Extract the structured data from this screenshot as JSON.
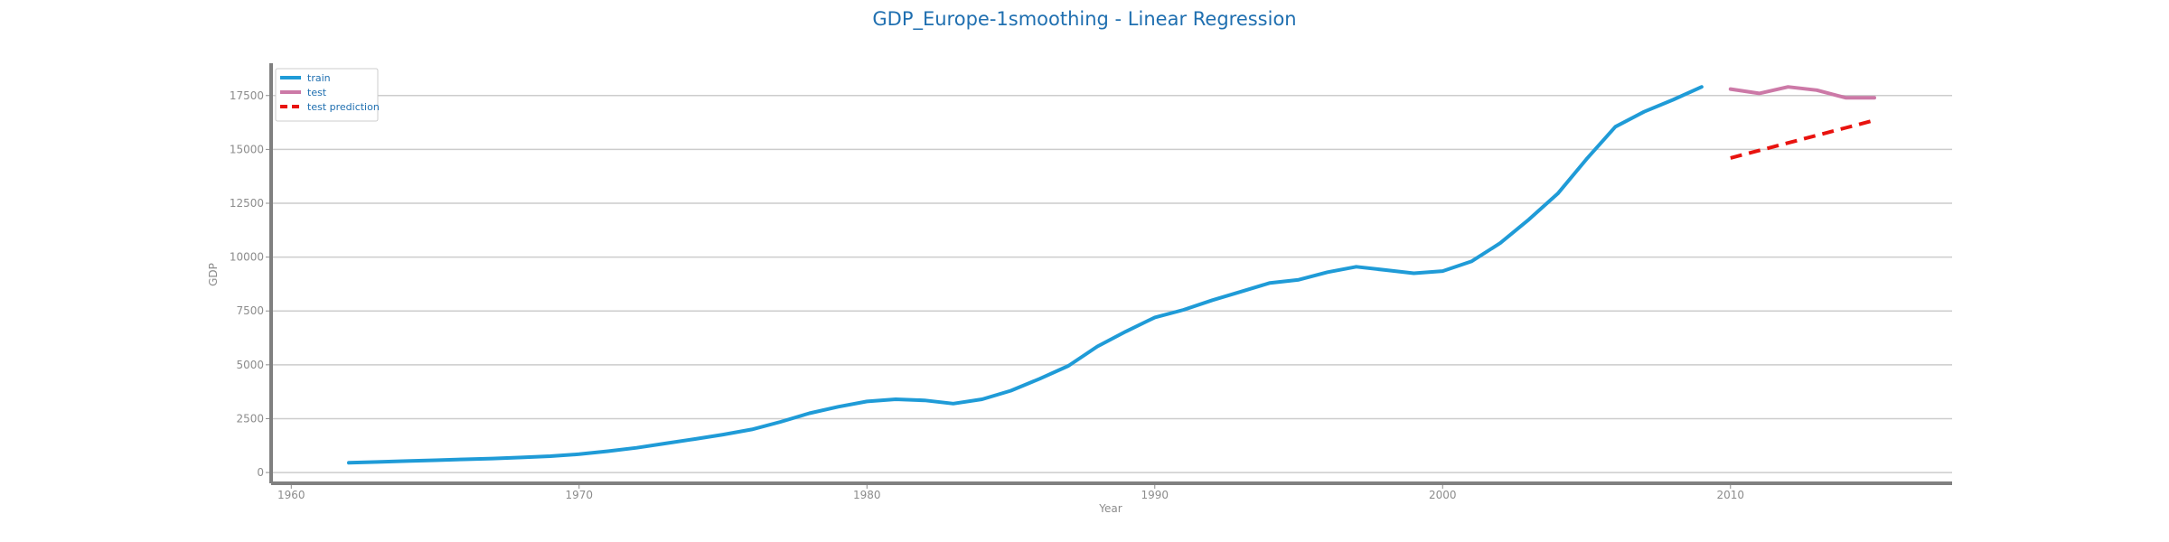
{
  "chart_data": {
    "type": "line",
    "title": "GDP_Europe-1smoothing - Linear Regression",
    "xlabel": "Year",
    "ylabel": "GDP",
    "xlim": [
      1959.3,
      2017.7
    ],
    "ylim": [
      -500,
      19000
    ],
    "x_ticks": [
      "1960",
      "1970",
      "1980",
      "1990",
      "2000",
      "2010"
    ],
    "y_ticks": [
      "0",
      "2500",
      "5000",
      "7500",
      "10000",
      "12500",
      "15000",
      "17500"
    ],
    "grid": "horizontal",
    "legend_position": "top-left",
    "series": [
      {
        "name": "train",
        "color": "#1f9bd7",
        "style": "solid",
        "x": [
          1962,
          1963,
          1964,
          1965,
          1966,
          1967,
          1968,
          1969,
          1970,
          1971,
          1972,
          1973,
          1974,
          1975,
          1976,
          1977,
          1978,
          1979,
          1980,
          1981,
          1982,
          1983,
          1984,
          1985,
          1986,
          1987,
          1988,
          1989,
          1990,
          1991,
          1992,
          1993,
          1994,
          1995,
          1996,
          1997,
          1998,
          1999,
          2000,
          2001,
          2002,
          2003,
          2004,
          2005,
          2006,
          2007,
          2008,
          2009
        ],
        "y": [
          450,
          490,
          530,
          570,
          610,
          650,
          700,
          760,
          850,
          990,
          1150,
          1350,
          1550,
          1760,
          2000,
          2350,
          2750,
          3050,
          3300,
          3400,
          3350,
          3200,
          3400,
          3800,
          4350,
          4950,
          5850,
          6550,
          7200,
          7550,
          8000,
          8400,
          8800,
          8950,
          9300,
          9550,
          9400,
          9250,
          9350,
          9800,
          10650,
          11750,
          12950,
          14550,
          16050,
          16750,
          17300,
          17900
        ]
      },
      {
        "name": "test",
        "color": "#cc79a7",
        "style": "solid",
        "x": [
          2010,
          2011,
          2012,
          2013,
          2014,
          2015
        ],
        "y": [
          17800,
          17600,
          17900,
          17750,
          17400,
          17400
        ]
      },
      {
        "name": "test prediction",
        "color": "#e8130f",
        "style": "dashed",
        "x": [
          2010,
          2011,
          2012,
          2013,
          2014,
          2015
        ],
        "y": [
          14600,
          14950,
          15300,
          15650,
          16000,
          16350
        ]
      }
    ]
  }
}
